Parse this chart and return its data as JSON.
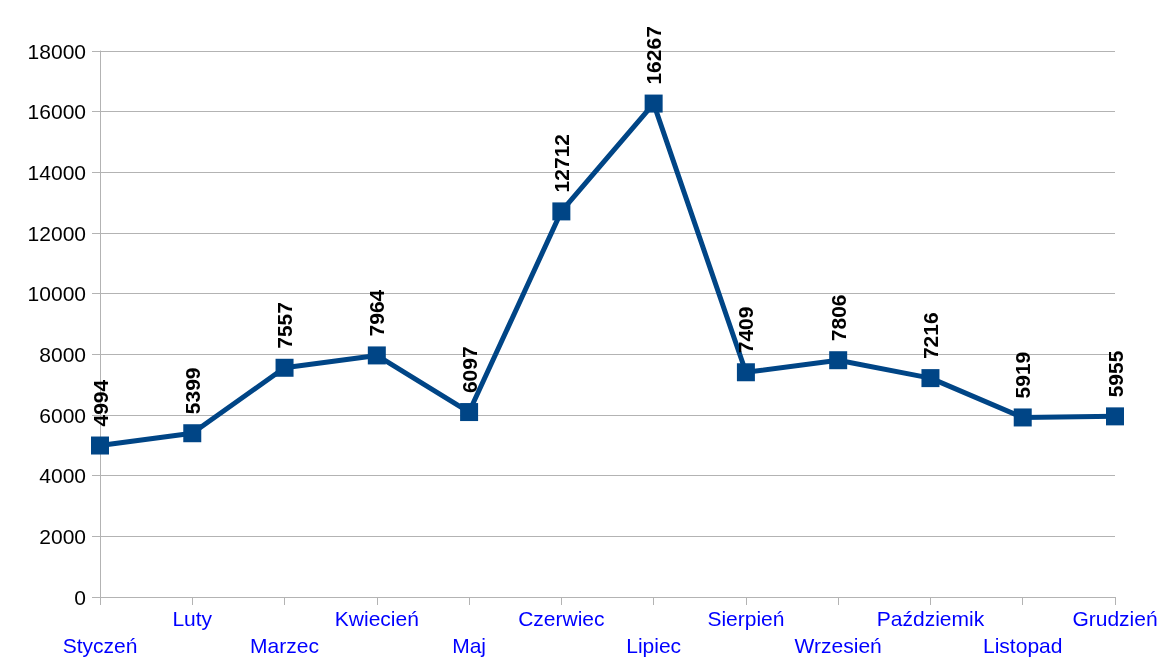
{
  "chart_data": {
    "type": "line",
    "categories": [
      "Styczeń",
      "Luty",
      "Marzec",
      "Kwiecień",
      "Maj",
      "Czerwiec",
      "Lipiec",
      "Sierpień",
      "Wrzesień",
      "Paździemik",
      "Listopad",
      "Grudzień"
    ],
    "series": [
      {
        "color": "#004586",
        "values": [
          4994,
          5399,
          7557,
          7964,
          6097,
          12712,
          16267,
          7409,
          7806,
          7216,
          5919,
          5955
        ]
      }
    ],
    "ylim": [
      0,
      18000
    ],
    "yticks": [
      0,
      2000,
      4000,
      6000,
      8000,
      10000,
      12000,
      14000,
      16000,
      18000
    ],
    "grid": "y",
    "marker": "square",
    "line_style": "solid",
    "data_labels": true
  }
}
